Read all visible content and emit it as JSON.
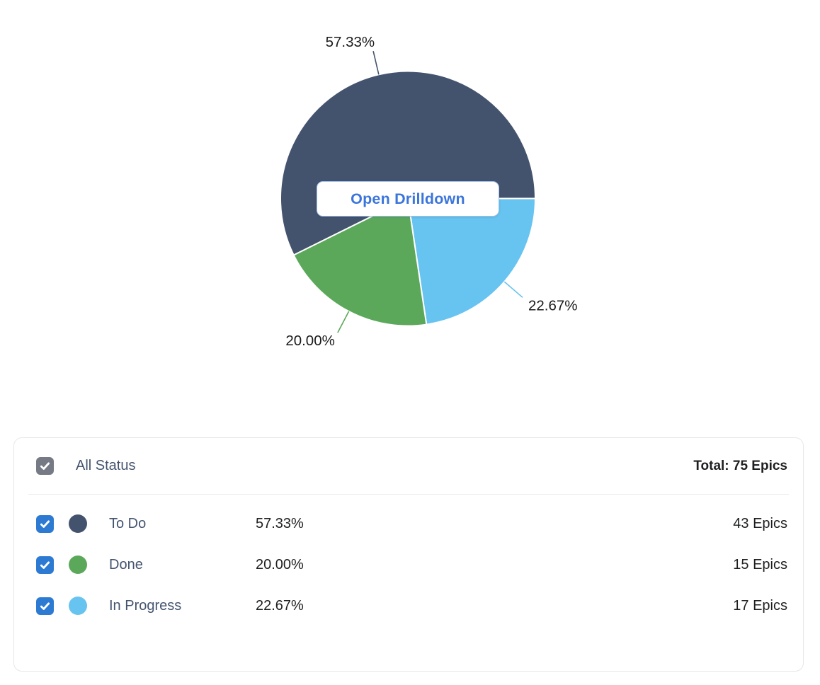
{
  "chart": {
    "button_label": "Open Drilldown"
  },
  "chart_data": {
    "type": "pie",
    "unit": "Epics",
    "total": 75,
    "start_angle_deg": 243.6,
    "clockwise": true,
    "legend_position": "bottom-panel",
    "slices": [
      {
        "name": "To Do",
        "value": 43,
        "percent": 57.33,
        "percent_label": "57.33%",
        "color": "#44536D"
      },
      {
        "name": "In Progress",
        "value": 17,
        "percent": 22.67,
        "percent_label": "22.67%",
        "color": "#67C3F0"
      },
      {
        "name": "Done",
        "value": 15,
        "percent": 20.0,
        "percent_label": "20.00%",
        "color": "#5BA85B"
      }
    ]
  },
  "legend": {
    "checkbox_color": "#2D7AD3",
    "header": {
      "label": "All Status",
      "total_label": "Total: 75 Epics",
      "checked": true,
      "checkbox_color": "#757A85"
    },
    "rows": [
      {
        "label": "To Do",
        "percent": "57.33%",
        "epics": "43 Epics",
        "color": "#44536D",
        "checked": true
      },
      {
        "label": "Done",
        "percent": "20.00%",
        "epics": "15 Epics",
        "color": "#5BA85B",
        "checked": true
      },
      {
        "label": "In Progress",
        "percent": "22.67%",
        "epics": "17 Epics",
        "color": "#67C3F0",
        "checked": true
      }
    ]
  },
  "colors": {
    "accent_blue": "#3B75DB",
    "button_border": "#A3C2EA",
    "panel_border": "#E6E7EA",
    "divider": "#EBECEF",
    "pie_label_text": "#1B1B1B",
    "row_label_text": "#44546F"
  }
}
